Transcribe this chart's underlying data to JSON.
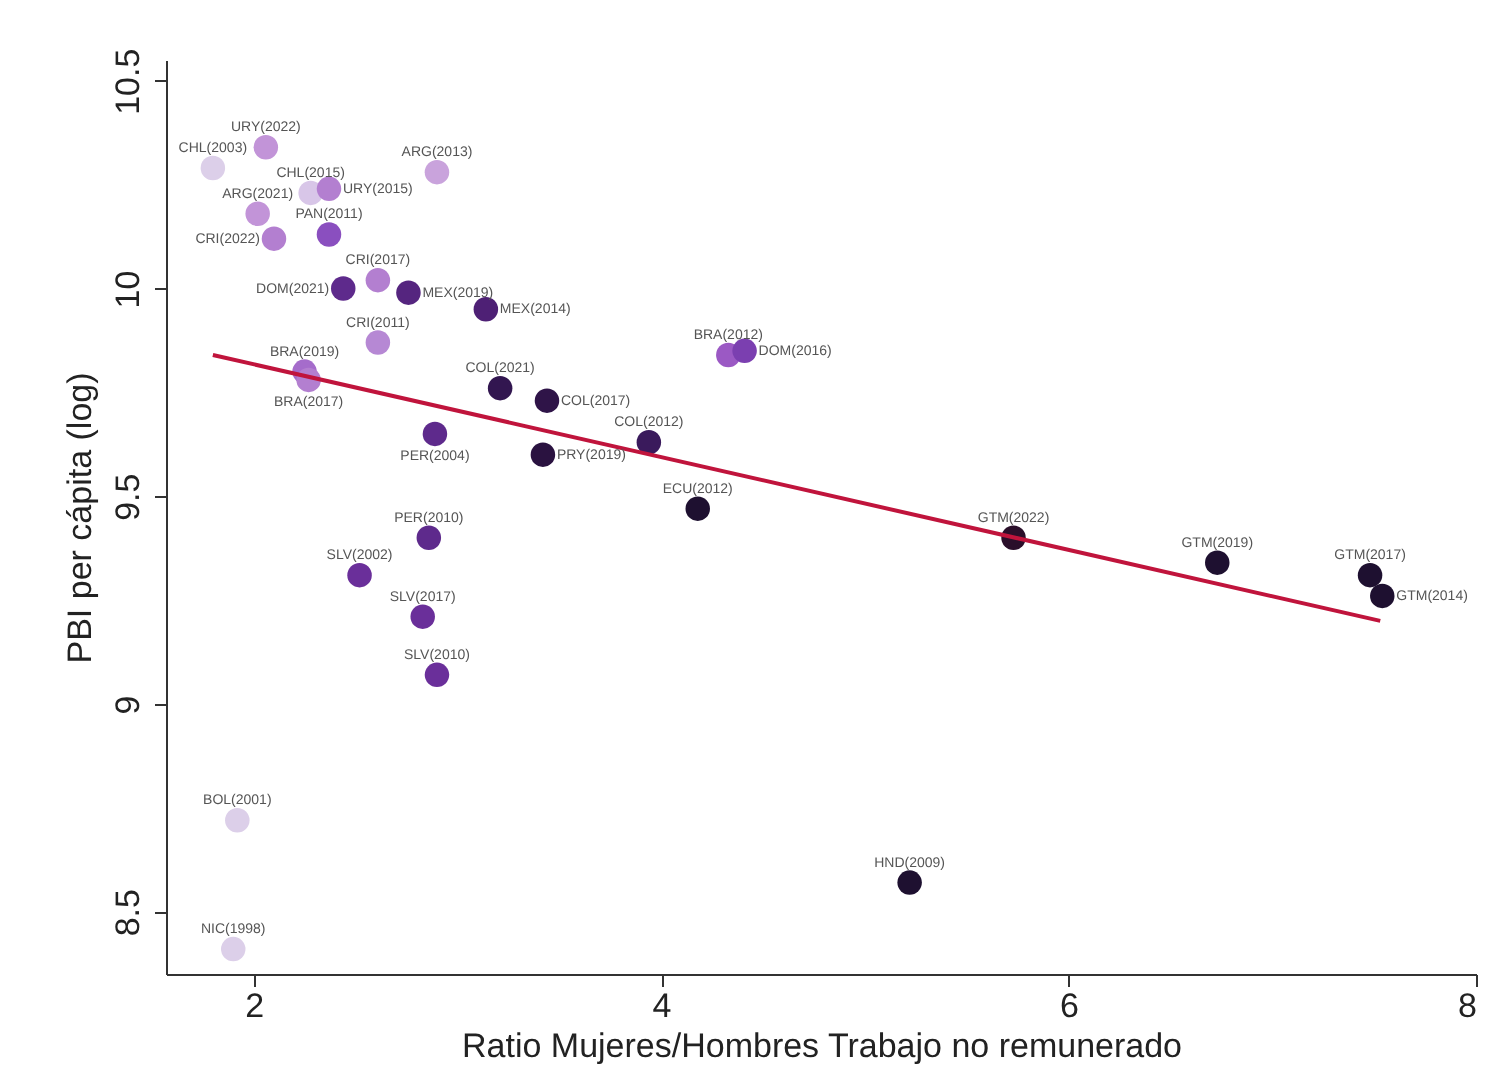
{
  "chart_data": {
    "type": "scatter",
    "xlabel": "Ratio Mujeres/Hombres Trabajo no remunerado",
    "ylabel": "PBI per cápita (log)",
    "xlim": [
      1.57,
      8.0
    ],
    "ylim": [
      8.35,
      10.55
    ],
    "xticks": [
      2,
      4,
      6,
      8
    ],
    "yticks": [
      8.5,
      9,
      9.5,
      10,
      10.5
    ],
    "grid": false,
    "series": [
      {
        "marker": "circle",
        "x": [
          1.8,
          2.06,
          2.9,
          2.28,
          2.37,
          2.02,
          2.37,
          2.1,
          2.61,
          2.44,
          2.76,
          3.14,
          2.61,
          2.25,
          2.27,
          3.21,
          3.44,
          2.89,
          3.42,
          3.94,
          4.18,
          2.86,
          2.52,
          2.83,
          2.9,
          4.33,
          4.41,
          5.73,
          6.73,
          7.48,
          7.54,
          1.92,
          1.9,
          5.22
        ],
        "values": [
          10.29,
          10.34,
          10.28,
          10.23,
          10.24,
          10.18,
          10.13,
          10.12,
          10.02,
          10.0,
          9.99,
          9.95,
          9.87,
          9.8,
          9.78,
          9.76,
          9.73,
          9.65,
          9.6,
          9.63,
          9.47,
          9.4,
          9.31,
          9.21,
          9.07,
          9.84,
          9.85,
          9.4,
          9.34,
          9.31,
          9.26,
          8.72,
          8.41,
          8.57
        ],
        "colors": [
          "#dccfe9",
          "#c294d8",
          "#c9a3dc",
          "#d8c6e8",
          "#b37fd0",
          "#c294d8",
          "#8a4fbf",
          "#b37fd0",
          "#b37fd0",
          "#5e2a8c",
          "#55257f",
          "#4e2075",
          "#b688d4",
          "#a56ccb",
          "#b37fd0",
          "#321650",
          "#2f1448",
          "#5e2a8c",
          "#2a1240",
          "#3a1a5c",
          "#1e1030",
          "#5e2a8c",
          "#6a2f9a",
          "#6a2f9a",
          "#6a2f9a",
          "#9b59c4",
          "#7b3fb0",
          "#2a0f2a",
          "#1e1030",
          "#1e1030",
          "#1e1030",
          "#dccfe9",
          "#dccfe9",
          "#1e1030"
        ]
      },
      {
        "type": "line",
        "x": [
          1.8,
          7.53
        ],
        "values": [
          9.84,
          9.2
        ],
        "color": "#c0143c"
      }
    ],
    "annotations": [
      {
        "text": "CHL(2003)",
        "x": 1.8,
        "y": 10.29
      },
      {
        "text": "URY(2022)",
        "x": 2.06,
        "y": 10.34
      },
      {
        "text": "ARG(2013)",
        "x": 2.9,
        "y": 10.28
      },
      {
        "text": "CHL(2015)",
        "x": 2.28,
        "y": 10.23
      },
      {
        "text": "URY(2015)",
        "x": 2.37,
        "y": 10.24
      },
      {
        "text": "ARG(2021)",
        "x": 2.02,
        "y": 10.18
      },
      {
        "text": "PAN(2011)",
        "x": 2.37,
        "y": 10.13
      },
      {
        "text": "CRI(2022)",
        "x": 2.1,
        "y": 10.12
      },
      {
        "text": "CRI(2017)",
        "x": 2.61,
        "y": 10.02
      },
      {
        "text": "DOM(2021)",
        "x": 2.44,
        "y": 10.0
      },
      {
        "text": "MEX(2019)",
        "x": 2.76,
        "y": 9.99
      },
      {
        "text": "MEX(2014)",
        "x": 3.14,
        "y": 9.95
      },
      {
        "text": "CRI(2011)",
        "x": 2.61,
        "y": 9.87
      },
      {
        "text": "BRA(2019)",
        "x": 2.25,
        "y": 9.8
      },
      {
        "text": "BRA(2017)",
        "x": 2.27,
        "y": 9.78
      },
      {
        "text": "COL(2021)",
        "x": 3.21,
        "y": 9.76
      },
      {
        "text": "COL(2017)",
        "x": 3.44,
        "y": 9.73
      },
      {
        "text": "PER(2004)",
        "x": 2.89,
        "y": 9.65
      },
      {
        "text": "PRY(2019)",
        "x": 3.42,
        "y": 9.6
      },
      {
        "text": "COL(2012)",
        "x": 3.94,
        "y": 9.63
      },
      {
        "text": "ECU(2012)",
        "x": 4.18,
        "y": 9.47
      },
      {
        "text": "PER(2010)",
        "x": 2.86,
        "y": 9.4
      },
      {
        "text": "SLV(2002)",
        "x": 2.52,
        "y": 9.31
      },
      {
        "text": "SLV(2017)",
        "x": 2.83,
        "y": 9.21
      },
      {
        "text": "SLV(2010)",
        "x": 2.9,
        "y": 9.07
      },
      {
        "text": "BRA(2012)",
        "x": 4.33,
        "y": 9.84
      },
      {
        "text": "DOM(2016)",
        "x": 4.41,
        "y": 9.85
      },
      {
        "text": "GTM(2022)",
        "x": 5.73,
        "y": 9.4
      },
      {
        "text": "GTM(2019)",
        "x": 6.73,
        "y": 9.34
      },
      {
        "text": "GTM(2017)",
        "x": 7.48,
        "y": 9.31
      },
      {
        "text": "GTM(2014)",
        "x": 7.54,
        "y": 9.26
      },
      {
        "text": "BOL(2001)",
        "x": 1.92,
        "y": 8.72
      },
      {
        "text": "NIC(1998)",
        "x": 1.9,
        "y": 8.41
      },
      {
        "text": "HND(2009)",
        "x": 5.22,
        "y": 8.57
      }
    ]
  }
}
